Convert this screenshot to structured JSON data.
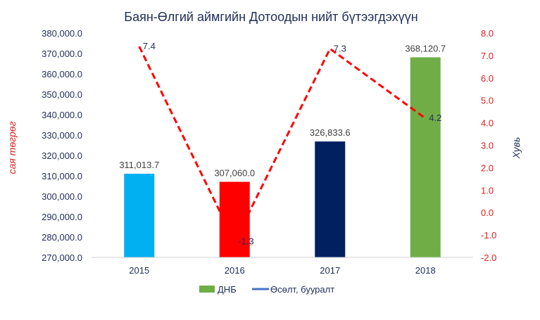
{
  "chart_data": {
    "type": "bar+line",
    "title": "Баян-Өлгий аймгийн Дотоодын нийт бүтээгдэхүүн",
    "categories": [
      "2015",
      "2016",
      "2017",
      "2018"
    ],
    "series": [
      {
        "name": "ДНБ",
        "type": "bar",
        "axis": "left",
        "values": [
          311013.7,
          307060.0,
          326833.6,
          368120.7
        ],
        "labels": [
          "311,013.7",
          "307,060.0",
          "326,833.6",
          "368,120.7"
        ],
        "colors": [
          "#00b0f0",
          "#ff0000",
          "#002060",
          "#70ad47"
        ]
      },
      {
        "name": "Өсөлт, бууралт",
        "type": "line",
        "axis": "right",
        "values": [
          7.4,
          -1.3,
          7.3,
          4.2
        ],
        "labels": [
          "7.4",
          "-1.3",
          "7.3",
          "4.2"
        ],
        "color": "#ff0000",
        "style": "dashed"
      }
    ],
    "ylabel": "сая төгрөг",
    "y2label": "Хувь",
    "ylim": [
      270000,
      380000
    ],
    "y2lim": [
      -2,
      8
    ],
    "yticks": [
      "270,000.0",
      "280,000.0",
      "290,000.0",
      "300,000.0",
      "310,000.0",
      "320,000.0",
      "330,000.0",
      "340,000.0",
      "350,000.0",
      "360,000.0",
      "370,000.0",
      "380,000.0"
    ],
    "y2ticks": [
      "-2.0",
      "-1.0",
      "0.0",
      "1.0",
      "2.0",
      "3.0",
      "4.0",
      "5.0",
      "6.0",
      "7.0",
      "8.0"
    ],
    "legend": {
      "position": "bottom",
      "bar_label": "ДНБ",
      "line_label": "Өсөлт, бууралт",
      "bar_color": "#70ad47",
      "line_color": "#4472c4"
    },
    "grid": false
  }
}
